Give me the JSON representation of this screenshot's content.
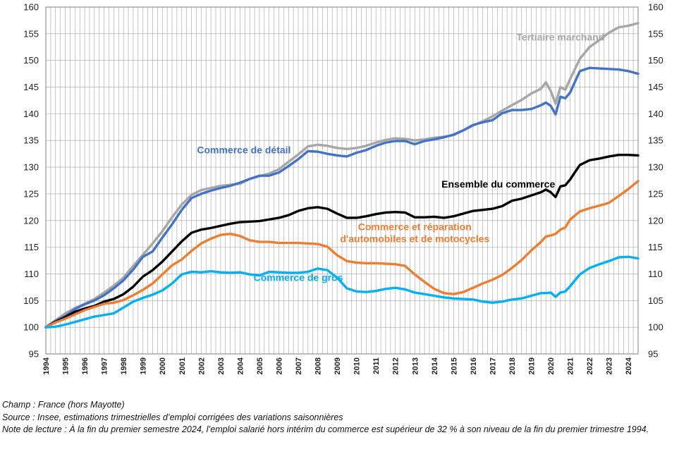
{
  "chart_data": {
    "type": "line",
    "title": "",
    "xlabel": "",
    "ylabel": "",
    "ylim": [
      95,
      160
    ],
    "yticks": [
      95,
      100,
      105,
      110,
      115,
      120,
      125,
      130,
      135,
      140,
      145,
      150,
      155,
      160
    ],
    "xlim": [
      1994,
      2024.5
    ],
    "xticks": [
      "1994",
      "1995",
      "1996",
      "1997",
      "1998",
      "1999",
      "2000",
      "2001",
      "2002",
      "2003",
      "2004",
      "2005",
      "2006",
      "2007",
      "2008",
      "2009",
      "2010",
      "2011",
      "2012",
      "2013",
      "2014",
      "2015",
      "2016",
      "2017",
      "2018",
      "2019",
      "2020",
      "2021",
      "2022",
      "2023",
      "2024"
    ],
    "grid": true,
    "x": [
      1994,
      1994.5,
      1995,
      1995.5,
      1996,
      1996.5,
      1997,
      1997.5,
      1998,
      1998.5,
      1999,
      1999.5,
      2000,
      2000.5,
      2001,
      2001.5,
      2002,
      2002.5,
      2003,
      2003.5,
      2004,
      2004.5,
      2005,
      2005.5,
      2006,
      2006.5,
      2007,
      2007.5,
      2008,
      2008.5,
      2009,
      2009.5,
      2010,
      2010.5,
      2011,
      2011.5,
      2012,
      2012.5,
      2013,
      2013.5,
      2014,
      2014.5,
      2015,
      2015.5,
      2016,
      2016.5,
      2017,
      2017.5,
      2018,
      2018.5,
      2019,
      2019.5,
      2019.75,
      2020,
      2020.25,
      2020.5,
      2020.75,
      2021,
      2021.5,
      2022,
      2022.5,
      2023,
      2023.5,
      2024,
      2024.5
    ],
    "series": [
      {
        "name": "Tertiaire marchand",
        "color": "#a6a6a6",
        "values": [
          100,
          101.3,
          102.6,
          103.6,
          104.4,
          105.3,
          106.5,
          107.8,
          109.3,
          111.5,
          113.6,
          115.7,
          118,
          120.6,
          123,
          124.8,
          125.7,
          126.1,
          126.5,
          126.7,
          126.9,
          127.8,
          128.3,
          128.8,
          129.6,
          131,
          132.4,
          133.9,
          134.2,
          134,
          133.6,
          133.4,
          133.6,
          134,
          134.6,
          135.1,
          135.4,
          135.3,
          135,
          135.2,
          135.5,
          135.7,
          136,
          136.9,
          137.8,
          138.6,
          139.5,
          140.6,
          141.6,
          142.6,
          143.8,
          144.7,
          145.9,
          144.3,
          141.9,
          145,
          144.5,
          146.5,
          150.3,
          152.5,
          153.8,
          155.2,
          156.2,
          156.5,
          157
        ]
      },
      {
        "name": "Commerce de détail",
        "color": "#4472c4",
        "values": [
          100,
          101.2,
          102.1,
          103.4,
          104.3,
          105,
          106,
          107.3,
          108.8,
          110.8,
          113.2,
          114.2,
          116.8,
          119.3,
          122,
          124.2,
          125,
          125.6,
          126.1,
          126.5,
          127.1,
          127.8,
          128.4,
          128.4,
          129,
          130.2,
          131.5,
          133,
          132.9,
          132.5,
          132.2,
          132,
          132.7,
          133.2,
          134,
          134.6,
          134.9,
          134.9,
          134.3,
          134.9,
          135.2,
          135.6,
          136.1,
          136.9,
          137.9,
          138.4,
          138.8,
          140.1,
          140.7,
          140.7,
          140.9,
          141.6,
          142.1,
          141.5,
          139.9,
          143.2,
          142.9,
          144,
          148,
          148.6,
          148.5,
          148.4,
          148.3,
          148,
          147.5
        ]
      },
      {
        "name": "Ensemble du commerce",
        "color": "#000000",
        "values": [
          100,
          101,
          101.9,
          102.9,
          103.5,
          104,
          104.8,
          105.3,
          106.2,
          107.6,
          109.5,
          110.7,
          112.3,
          114.2,
          116.1,
          117.7,
          118.3,
          118.6,
          119,
          119.4,
          119.7,
          119.8,
          119.9,
          120.2,
          120.5,
          121,
          121.8,
          122.3,
          122.5,
          122.2,
          121.3,
          120.5,
          120.5,
          120.8,
          121.2,
          121.5,
          121.6,
          121.5,
          120.6,
          120.6,
          120.7,
          120.5,
          120.8,
          121.3,
          121.8,
          122,
          122.2,
          122.7,
          123.7,
          124.1,
          124.7,
          125.3,
          125.8,
          125.3,
          124.4,
          126.4,
          126.6,
          127.7,
          130.4,
          131.3,
          131.6,
          132,
          132.3,
          132.3,
          132.2
        ]
      },
      {
        "name": "Commerce et réparation d'automobiles et de motocycles",
        "color": "#ed7d31",
        "values": [
          100,
          100.9,
          101.6,
          102.4,
          103.2,
          103.8,
          104.4,
          104.6,
          105.1,
          106,
          107,
          108.2,
          109.9,
          111.6,
          112.7,
          114.3,
          115.7,
          116.6,
          117.3,
          117.5,
          117.1,
          116.3,
          116,
          116,
          115.8,
          115.8,
          115.8,
          115.7,
          115.6,
          115.1,
          113.5,
          112.4,
          112.1,
          112,
          112,
          111.9,
          111.8,
          111.5,
          109.9,
          108.5,
          107.2,
          106.4,
          106.2,
          106.6,
          107.4,
          108.2,
          108.9,
          109.8,
          111.1,
          112.6,
          114.4,
          116,
          117,
          117.2,
          117.5,
          118.3,
          118.7,
          120.2,
          121.7,
          122.3,
          122.8,
          123.3,
          124.6,
          125.9,
          127.4
        ]
      },
      {
        "name": "Commerce de gros",
        "color": "#00b0f0",
        "values": [
          100,
          100.1,
          100.5,
          101,
          101.5,
          102,
          102.3,
          102.6,
          103.7,
          104.8,
          105.5,
          106.1,
          106.9,
          108.2,
          109.9,
          110.4,
          110.3,
          110.5,
          110.3,
          110.2,
          110.3,
          109.9,
          109.7,
          110.4,
          110.3,
          110.2,
          110.2,
          110.4,
          111,
          110.7,
          109.3,
          107.3,
          106.7,
          106.6,
          106.8,
          107.2,
          107.4,
          107.1,
          106.5,
          106.2,
          105.9,
          105.6,
          105.4,
          105.3,
          105.2,
          104.8,
          104.6,
          104.8,
          105.2,
          105.4,
          105.9,
          106.4,
          106.4,
          106.5,
          105.7,
          106.5,
          106.7,
          107.7,
          109.9,
          111.1,
          111.8,
          112.4,
          113.1,
          113.2,
          112.9
        ]
      }
    ],
    "labels": [
      {
        "series": 0,
        "lines": [
          "Tertiaire marchand"
        ],
        "x": 2020.5,
        "y": 153.7
      },
      {
        "series": 1,
        "lines": [
          "Commerce de détail"
        ],
        "x": 2004.2,
        "y": 132.6
      },
      {
        "series": 2,
        "lines": [
          "Ensemble du commerce"
        ],
        "x": 2017.3,
        "y": 126.2
      },
      {
        "series": 3,
        "lines": [
          "Commerce et réparation",
          "d'automobiles et de motocycles"
        ],
        "x": 2013,
        "y": 118.2
      },
      {
        "series": 4,
        "lines": [
          "Commerce de gros"
        ],
        "x": 2007,
        "y": 108.7
      }
    ]
  },
  "notes": {
    "champ": "Champ : France (hors Mayotte)",
    "source": "Source : Insee, estimations trimestrielles d’emploi corrigées des variations saisonnières",
    "lecture": "Note de lecture : À la fin du premier semestre 2024, l’emploi salarié hors intérim du commerce est supérieur de 32 % à son niveau de la fin du premier trimestre 1994."
  }
}
